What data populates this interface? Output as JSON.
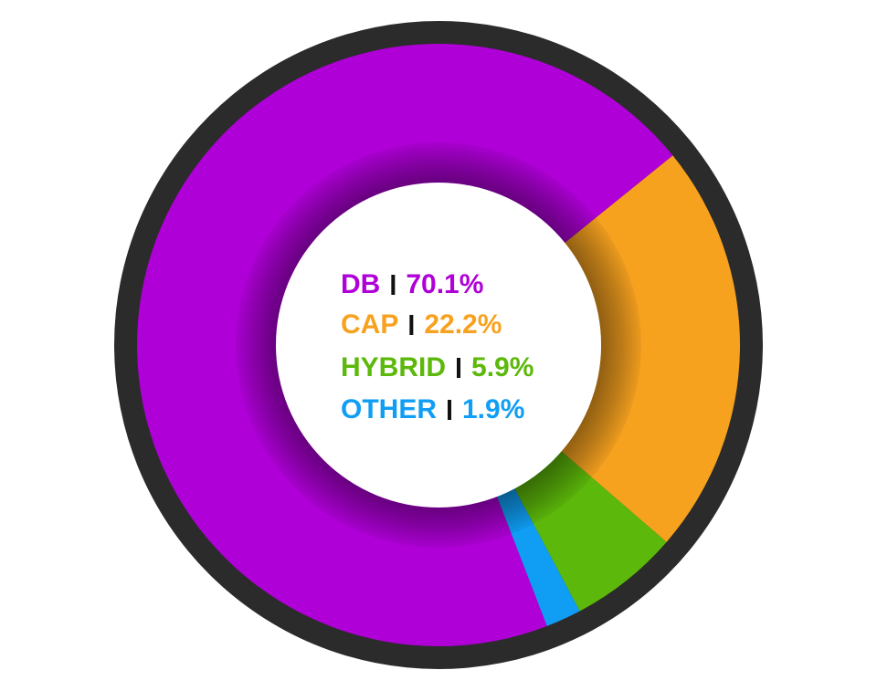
{
  "chart_data": {
    "type": "donut",
    "categories": [
      "DB",
      "CAP",
      "HYBRID",
      "OTHER"
    ],
    "values": [
      70.1,
      22.2,
      5.9,
      1.9
    ],
    "value_labels": [
      "70.1%",
      "22.2%",
      "5.9%",
      "1.9%"
    ],
    "colors": [
      "#b000d8",
      "#f7a21f",
      "#5cb80a",
      "#109ef5"
    ]
  }
}
